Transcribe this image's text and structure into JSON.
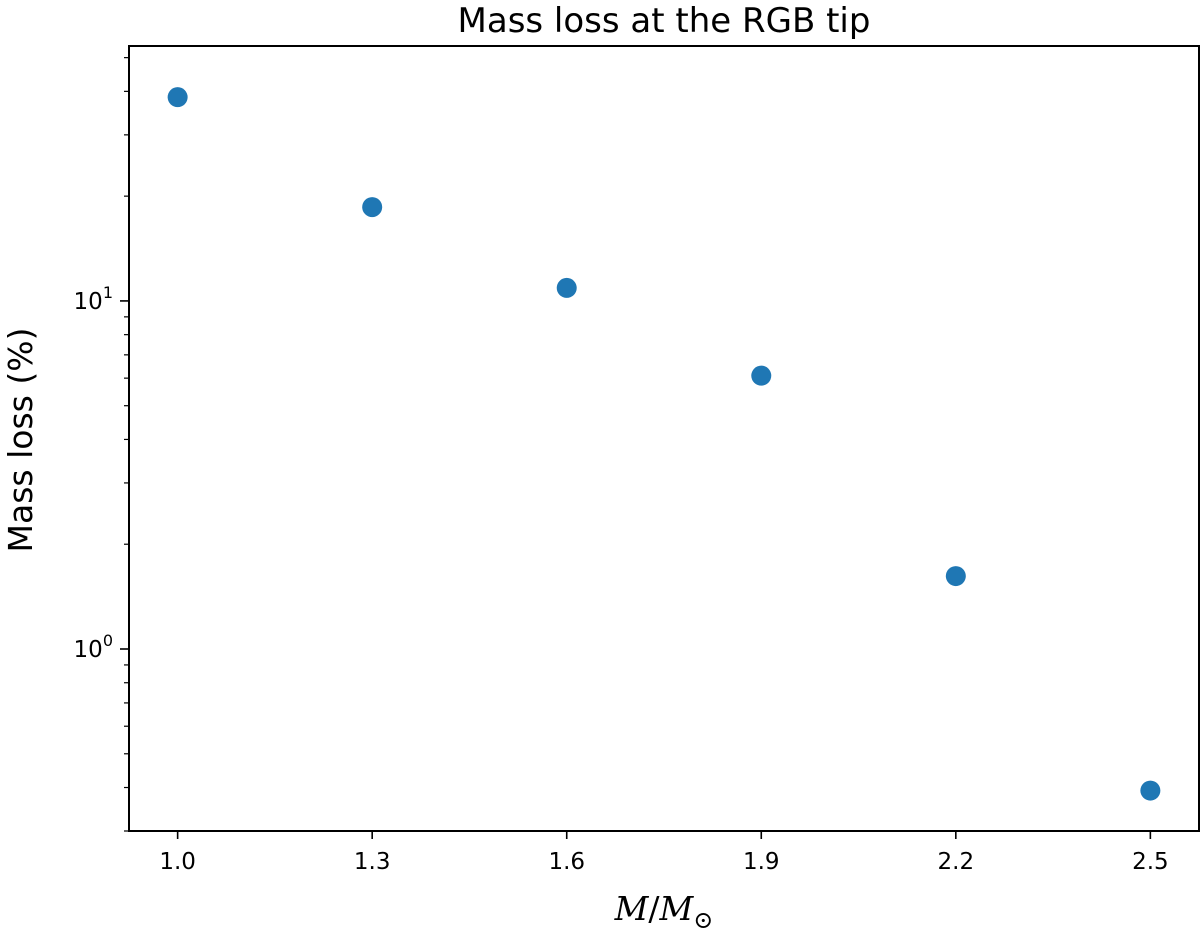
{
  "chart_data": {
    "type": "scatter",
    "title": "Mass loss at the RGB tip",
    "xlabel": {
      "var": "M",
      "sep": "/",
      "ref": "M",
      "sub": "⊙"
    },
    "ylabel": "Mass loss (%)",
    "x": [
      1.0,
      1.3,
      1.6,
      1.9,
      2.2,
      2.5
    ],
    "y": [
      38.5,
      18.6,
      10.9,
      6.1,
      1.62,
      0.392
    ],
    "xlim": [
      0.925,
      2.575
    ],
    "ylim": [
      0.3,
      54
    ],
    "yscale": "log",
    "xticks": [
      1.0,
      1.3,
      1.6,
      1.9,
      2.2,
      2.5
    ],
    "xtick_labels": [
      "1.0",
      "1.3",
      "1.6",
      "1.9",
      "2.2",
      "2.5"
    ],
    "yticks_major": [
      1,
      10
    ],
    "ytick_labels": [
      {
        "base": "10",
        "exp": "0"
      },
      {
        "base": "10",
        "exp": "1"
      }
    ],
    "yticks_minor": [
      0.3,
      0.4,
      0.5,
      0.6,
      0.7,
      0.8,
      0.9,
      2,
      3,
      4,
      5,
      6,
      7,
      8,
      9,
      20,
      30,
      40,
      50
    ],
    "grid": false,
    "marker_color": "#1f77b4"
  }
}
